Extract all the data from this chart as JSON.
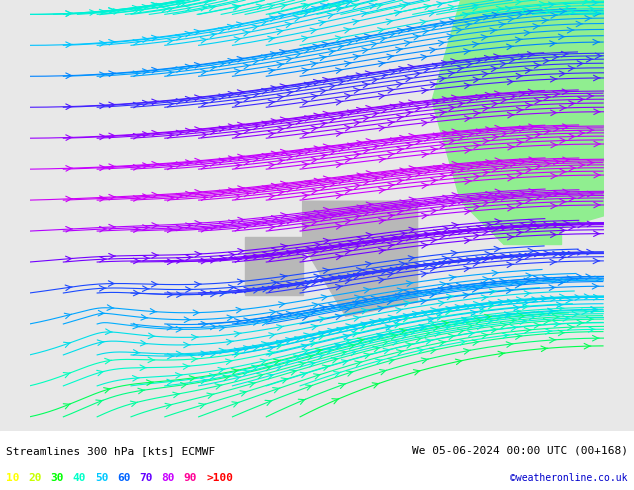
{
  "title_left": "Streamlines 300 hPa [kts] ECMWF",
  "title_right": "We 05-06-2024 00:00 UTC (00+168)",
  "credit": "©weatheronline.co.uk",
  "legend_values": [
    "10",
    "20",
    "30",
    "40",
    "50",
    "60",
    "70",
    "80",
    "90",
    ">100"
  ],
  "legend_colors": [
    "#ffff00",
    "#c8ff00",
    "#00ff00",
    "#00ffc8",
    "#00c8ff",
    "#0064ff",
    "#6400ff",
    "#c800ff",
    "#ff0096",
    "#ff0000"
  ],
  "bg_color": "#e8e8e8",
  "land_color": "#d0d0d0",
  "green_area_color": "#90ee90",
  "fig_width": 6.34,
  "fig_height": 4.9,
  "bottom_bar_color": "#ffffff",
  "speed_colormap": [
    "#ffff00",
    "#c8ff00",
    "#00ff00",
    "#00ffc8",
    "#00c8ff",
    "#0064ff",
    "#6400ff",
    "#c800ff",
    "#ff0096",
    "#ff0000"
  ]
}
